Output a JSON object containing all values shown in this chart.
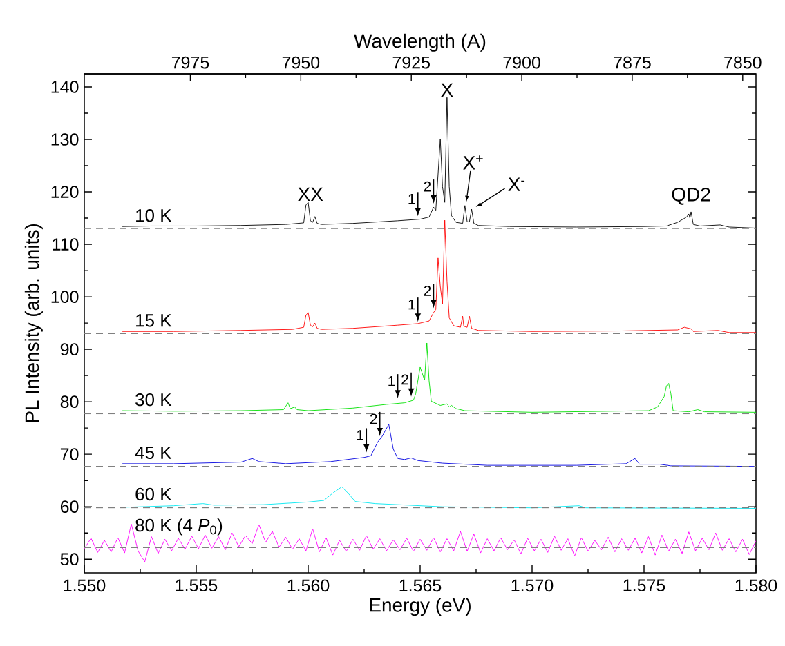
{
  "chart_data": {
    "type": "line",
    "xlabel": "Energy (eV)",
    "ylabel": "PL Intensity (arb. units)",
    "x2label": "Wavelength (A)",
    "xlim": [
      1.55,
      1.58
    ],
    "xticks": [
      {
        "value": 1.55,
        "label": "1.550"
      },
      {
        "value": 1.555,
        "label": "1.555"
      },
      {
        "value": 1.56,
        "label": "1.560"
      },
      {
        "value": 1.565,
        "label": "1.565"
      },
      {
        "value": 1.57,
        "label": "1.570"
      },
      {
        "value": 1.575,
        "label": "1.575"
      },
      {
        "value": 1.58,
        "label": "1.580"
      }
    ],
    "ylim": [
      47.4,
      142.5
    ],
    "yticks": [
      50,
      60,
      70,
      80,
      90,
      100,
      110,
      120,
      130,
      140
    ],
    "x2lim": [
      7999,
      7847
    ],
    "x2ticks": [
      7975,
      7950,
      7925,
      7900,
      7875,
      7850
    ],
    "series": [
      {
        "name": "10 K",
        "color": "#000000",
        "x": [
          1.5517,
          1.553,
          1.555,
          1.557,
          1.559,
          1.5598,
          1.5599,
          1.56,
          1.5601,
          1.5602,
          1.5603,
          1.5604,
          1.5606,
          1.562,
          1.564,
          1.565,
          1.5654,
          1.5656,
          1.5657,
          1.5659,
          1.566,
          1.5661,
          1.5662,
          1.5663,
          1.5664,
          1.5666,
          1.5669,
          1.567,
          1.5671,
          1.5672,
          1.5673,
          1.5674,
          1.5676,
          1.569,
          1.572,
          1.575,
          1.576,
          1.5765,
          1.5769,
          1.577,
          1.57705,
          1.5771,
          1.5772,
          1.5775,
          1.5784,
          1.5788,
          1.58
        ],
        "values": [
          113.4,
          113.5,
          113.5,
          113.6,
          113.8,
          114.1,
          117.5,
          118.0,
          114.5,
          114.2,
          115.3,
          114.0,
          113.8,
          114.0,
          114.5,
          114.8,
          115.2,
          117.1,
          116.5,
          130.1,
          121,
          118,
          138,
          121,
          115.5,
          114.2,
          114.0,
          117.4,
          114.3,
          114.3,
          116.7,
          114.0,
          113.6,
          113.4,
          113.3,
          113.4,
          113.5,
          114.2,
          115.2,
          115.8,
          115.0,
          116.2,
          113.8,
          113.5,
          113.7,
          113.3,
          113.1
        ]
      },
      {
        "name": "15 K",
        "color": "#ff0000",
        "x": [
          1.5517,
          1.554,
          1.557,
          1.5593,
          1.5598,
          1.5599,
          1.56,
          1.5601,
          1.5602,
          1.5603,
          1.5604,
          1.5606,
          1.562,
          1.564,
          1.5649,
          1.5654,
          1.5656,
          1.5657,
          1.5658,
          1.5659,
          1.566,
          1.5661,
          1.5662,
          1.5663,
          1.5665,
          1.5668,
          1.5669,
          1.56695,
          1.5671,
          1.5672,
          1.5673,
          1.5676,
          1.57,
          1.574,
          1.5765,
          1.5768,
          1.5771,
          1.5772,
          1.5783,
          1.5788,
          1.58
        ],
        "values": [
          93.4,
          93.4,
          93.6,
          93.8,
          94.2,
          96.5,
          97.0,
          94.6,
          94.3,
          95.0,
          94.0,
          93.8,
          94.0,
          94.6,
          94.9,
          95.4,
          97.0,
          97.6,
          107.4,
          102,
          98.6,
          114.6,
          103,
          96,
          94.5,
          94.2,
          96.3,
          94.4,
          94.2,
          96.3,
          94.0,
          93.6,
          93.4,
          93.5,
          93.7,
          94.2,
          93.9,
          93.4,
          93.6,
          93.2,
          93.2
        ]
      },
      {
        "name": "30 K",
        "color": "#00e000",
        "x": [
          1.5517,
          1.554,
          1.557,
          1.5589,
          1.5591,
          1.5592,
          1.5594,
          1.5595,
          1.56,
          1.562,
          1.5635,
          1.5643,
          1.5647,
          1.5648,
          1.565,
          1.5652,
          1.5653,
          1.5654,
          1.5655,
          1.5659,
          1.5662,
          1.5663,
          1.5664,
          1.5666,
          1.567,
          1.57,
          1.5752,
          1.5756,
          1.5759,
          1.576,
          1.5761,
          1.5762,
          1.5763,
          1.577,
          1.5774,
          1.5777,
          1.58
        ],
        "values": [
          78.3,
          78.2,
          78.3,
          78.5,
          79.8,
          78.7,
          79.0,
          78.5,
          78.3,
          78.8,
          79.5,
          79.8,
          80.3,
          81.5,
          86.6,
          84.1,
          91.2,
          84,
          80.1,
          79.3,
          79.6,
          79.0,
          79.3,
          78.7,
          78.3,
          78.0,
          78.3,
          79.0,
          81.0,
          83.0,
          83.5,
          81.5,
          78.3,
          78.1,
          78.5,
          78.1,
          78.0
        ]
      },
      {
        "name": "45 K",
        "color": "#0000e0",
        "x": [
          1.5517,
          1.554,
          1.557,
          1.5575,
          1.5578,
          1.559,
          1.561,
          1.5625,
          1.5628,
          1.5631,
          1.5633,
          1.5636,
          1.5638,
          1.564,
          1.5643,
          1.5646,
          1.5649,
          1.566,
          1.568,
          1.572,
          1.5742,
          1.5746,
          1.5748,
          1.5757,
          1.5762,
          1.58
        ],
        "values": [
          68.2,
          68.2,
          68.5,
          69.2,
          68.6,
          68.2,
          68.6,
          69.4,
          69.7,
          72.3,
          73.4,
          75.7,
          71.0,
          69.2,
          69.0,
          69.3,
          68.8,
          68.3,
          67.9,
          67.9,
          68.2,
          69.2,
          68.1,
          68.1,
          67.8,
          67.7
        ]
      },
      {
        "name": "60 K",
        "color": "#00e8f0",
        "x": [
          1.5517,
          1.554,
          1.5553,
          1.5558,
          1.558,
          1.56,
          1.5607,
          1.5611,
          1.5615,
          1.5618,
          1.5621,
          1.563,
          1.566,
          1.57,
          1.5721,
          1.5724,
          1.58
        ],
        "values": [
          59.9,
          60.2,
          60.6,
          60.3,
          60.4,
          60.9,
          61.2,
          62.6,
          63.8,
          62.5,
          61.0,
          60.6,
          60.0,
          59.8,
          60.2,
          59.8,
          59.7
        ]
      },
      {
        "name": "80 K (4 *P*$_{0}$)",
        "color": "#ff00ff",
        "x": [
          1.55,
          1.5503,
          1.5506,
          1.5509,
          1.5512,
          1.5515,
          1.5518,
          1.5521,
          1.5524,
          1.5527,
          1.553,
          1.5533,
          1.5536,
          1.5539,
          1.5542,
          1.5545,
          1.5548,
          1.5551,
          1.5554,
          1.5557,
          1.556,
          1.5563,
          1.5566,
          1.5569,
          1.5572,
          1.5575,
          1.5578,
          1.5581,
          1.5584,
          1.5587,
          1.559,
          1.5593,
          1.5596,
          1.5599,
          1.5602,
          1.5605,
          1.5608,
          1.5611,
          1.5614,
          1.5617,
          1.562,
          1.5623,
          1.5626,
          1.5629,
          1.5632,
          1.5635,
          1.5638,
          1.5641,
          1.5644,
          1.5647,
          1.565,
          1.5653,
          1.5656,
          1.5659,
          1.5662,
          1.5665,
          1.5668,
          1.5671,
          1.5674,
          1.5677,
          1.568,
          1.5683,
          1.5686,
          1.5689,
          1.5692,
          1.5695,
          1.5698,
          1.5701,
          1.5704,
          1.5707,
          1.571,
          1.5713,
          1.5716,
          1.5719,
          1.5722,
          1.5725,
          1.5728,
          1.5731,
          1.5734,
          1.5737,
          1.574,
          1.5743,
          1.5746,
          1.5749,
          1.5752,
          1.5755,
          1.5758,
          1.5761,
          1.5764,
          1.5767,
          1.577,
          1.5773,
          1.5776,
          1.5779,
          1.5782,
          1.5785,
          1.5788,
          1.5791,
          1.5794,
          1.5797,
          1.58
        ],
        "values": [
          52.0,
          54.0,
          51.3,
          53.6,
          51.4,
          54.1,
          51.2,
          56.7,
          51.6,
          49.5,
          54.3,
          51.1,
          53.8,
          51.6,
          54.0,
          51.9,
          54.4,
          52.0,
          54.6,
          52.1,
          54.3,
          51.8,
          55.0,
          52.4,
          54.5,
          53.0,
          56.6,
          53.2,
          55.3,
          52.3,
          54.2,
          51.9,
          53.9,
          51.6,
          55.8,
          51.4,
          54.1,
          50.8,
          53.6,
          51.5,
          53.8,
          51.7,
          54.5,
          51.9,
          53.9,
          51.6,
          53.7,
          51.8,
          54.0,
          51.5,
          53.8,
          51.7,
          54.1,
          51.4,
          53.9,
          51.6,
          55.3,
          51.5,
          54.8,
          51.2,
          53.9,
          51.6,
          54.1,
          51.8,
          53.7,
          51.0,
          54.0,
          51.6,
          53.8,
          51.3,
          54.4,
          51.7,
          53.9,
          50.6,
          54.1,
          51.5,
          53.6,
          51.8,
          54.2,
          51.4,
          53.9,
          51.7,
          54.0,
          51.2,
          54.3,
          50.8,
          54.6,
          51.5,
          53.8,
          51.1,
          55.2,
          51.6,
          54.0,
          51.8,
          55.0,
          51.7,
          53.9,
          51.4,
          53.8,
          50.9,
          53.5
        ]
      }
    ],
    "ref_lines": [
      {
        "axis": "y",
        "value": 113,
        "color": "#808080",
        "line_style": "dashed"
      },
      {
        "axis": "y",
        "value": 93,
        "color": "#808080",
        "line_style": "dashed"
      },
      {
        "axis": "y",
        "value": 77.7,
        "color": "#808080",
        "line_style": "dashed"
      },
      {
        "axis": "y",
        "value": 67.7,
        "color": "#808080",
        "line_style": "dashed"
      },
      {
        "axis": "y",
        "value": 59.8,
        "color": "#808080",
        "line_style": "dashed"
      },
      {
        "axis": "y",
        "value": 52.2,
        "color": "#808080",
        "line_style": "dashed"
      }
    ],
    "annotations": [
      {
        "text": "XX",
        "x": 1.5601,
        "y": 118.0
      },
      {
        "text": "X",
        "x": 1.5662,
        "y": 138
      },
      {
        "text": "X$^{+}$",
        "x": 1.567,
        "y": 117.4
      },
      {
        "text": "X$^{-}$",
        "x": 1.5673,
        "y": 116.7
      },
      {
        "text": "QD2",
        "x": 1.5771,
        "y": 116.2
      },
      {
        "text": "1",
        "x": 1.5649,
        "y": 114.7
      },
      {
        "text": "2",
        "x": 1.5656,
        "y": 117.1
      },
      {
        "text": "1",
        "x": 1.5649,
        "y": 94.6
      },
      {
        "text": "2",
        "x": 1.5656,
        "y": 97.2
      },
      {
        "text": "1",
        "x": 1.564,
        "y": 80.0
      },
      {
        "text": "2",
        "x": 1.5646,
        "y": 80.3
      },
      {
        "text": "1",
        "x": 1.5626,
        "y": 69.7
      },
      {
        "text": "2",
        "x": 1.5632,
        "y": 72.8
      }
    ]
  }
}
